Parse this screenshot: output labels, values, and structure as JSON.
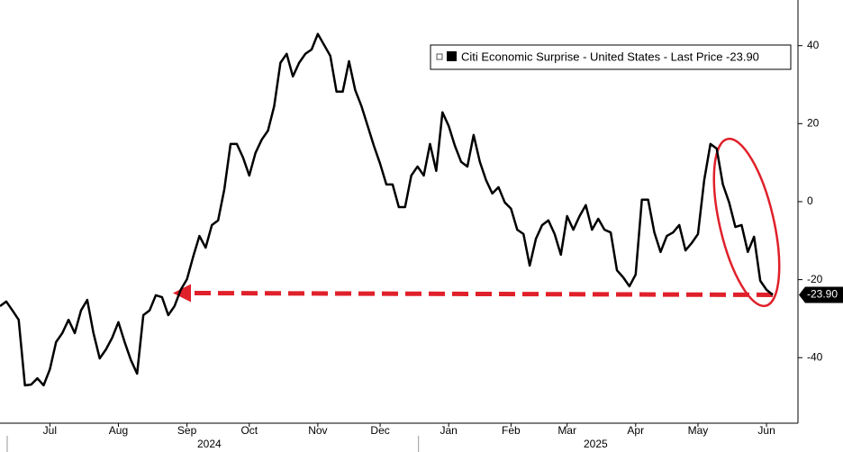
{
  "chart_data": {
    "type": "line",
    "categories": [
      null,
      null,
      null,
      null,
      null,
      null,
      null,
      null,
      "Jul",
      null,
      null,
      null,
      null,
      null,
      null,
      null,
      null,
      null,
      null,
      "Aug",
      null,
      null,
      null,
      null,
      null,
      null,
      null,
      null,
      null,
      null,
      "Sep",
      null,
      null,
      null,
      null,
      null,
      null,
      null,
      null,
      null,
      "Oct",
      null,
      null,
      null,
      null,
      null,
      null,
      null,
      null,
      null,
      null,
      "Nov",
      null,
      null,
      null,
      null,
      null,
      null,
      null,
      null,
      null,
      "Dec",
      null,
      null,
      null,
      null,
      null,
      null,
      null,
      null,
      null,
      null,
      "Jan",
      null,
      null,
      null,
      null,
      null,
      null,
      null,
      null,
      null,
      "Feb",
      null,
      null,
      null,
      null,
      null,
      null,
      null,
      null,
      "Mar",
      null,
      null,
      null,
      null,
      null,
      null,
      null,
      null,
      null,
      null,
      "Apr",
      null,
      null,
      null,
      null,
      null,
      null,
      null,
      null,
      null,
      "May",
      null,
      null,
      null,
      null,
      null,
      null,
      null,
      null,
      null,
      null,
      "Jun",
      null
    ],
    "years": [
      {
        "label": "2024",
        "start": 0,
        "end": 66
      },
      {
        "label": "2025",
        "start": 66,
        "end": 124
      }
    ],
    "series": [
      {
        "name": "Citi Economic Surprise - United States - Last Price -23.90",
        "color": "#000000",
        "values": [
          -26.8,
          -25.6,
          -27.9,
          -30.3,
          -47.1,
          -46.9,
          -45.3,
          -47.1,
          -43.0,
          -36.0,
          -33.7,
          -30.3,
          -33.7,
          -27.9,
          -25.2,
          -33.7,
          -40.2,
          -37.9,
          -34.9,
          -30.9,
          -36.0,
          -40.6,
          -44.1,
          -29.1,
          -27.9,
          -24.0,
          -24.5,
          -29.1,
          -26.8,
          -22.6,
          -19.9,
          -14.1,
          -8.8,
          -11.8,
          -6.0,
          -4.8,
          3.2,
          14.8,
          14.8,
          11.3,
          6.7,
          12.5,
          15.9,
          18.2,
          24.5,
          35.6,
          37.9,
          32.1,
          35.6,
          37.9,
          39.0,
          43.0,
          40.2,
          37.4,
          28.2,
          28.2,
          36.0,
          28.6,
          24.5,
          19.4,
          14.3,
          9.7,
          4.4,
          4.4,
          -1.4,
          -1.4,
          6.7,
          9.0,
          6.7,
          14.8,
          7.9,
          22.9,
          19.4,
          14.3,
          10.2,
          9.0,
          17.1,
          10.2,
          5.5,
          2.1,
          3.7,
          -0.2,
          -1.8,
          -7.2,
          -8.3,
          -16.4,
          -9.5,
          -6.0,
          -4.8,
          -8.3,
          -13.6,
          -3.7,
          -7.2,
          -3.7,
          -0.9,
          -7.2,
          -4.4,
          -7.2,
          -7.9,
          -17.6,
          -19.4,
          -21.7,
          -18.7,
          0.5,
          0.5,
          -7.9,
          -12.9,
          -8.8,
          -7.9,
          -6.0,
          -12.5,
          -10.6,
          -8.3,
          5.5,
          14.8,
          13.6,
          4.4,
          -0.2,
          -6.5,
          -6.0,
          -12.9,
          -9.0,
          -20.3,
          -22.6,
          -23.9
        ]
      }
    ],
    "last_price": {
      "value": -23.9,
      "label": "-23.90"
    },
    "annotation_color": "#e0202a",
    "ylim": [
      -56.8,
      51.7
    ],
    "yticks": [
      -40,
      -20,
      0,
      20,
      40
    ],
    "axis_side": "right"
  }
}
